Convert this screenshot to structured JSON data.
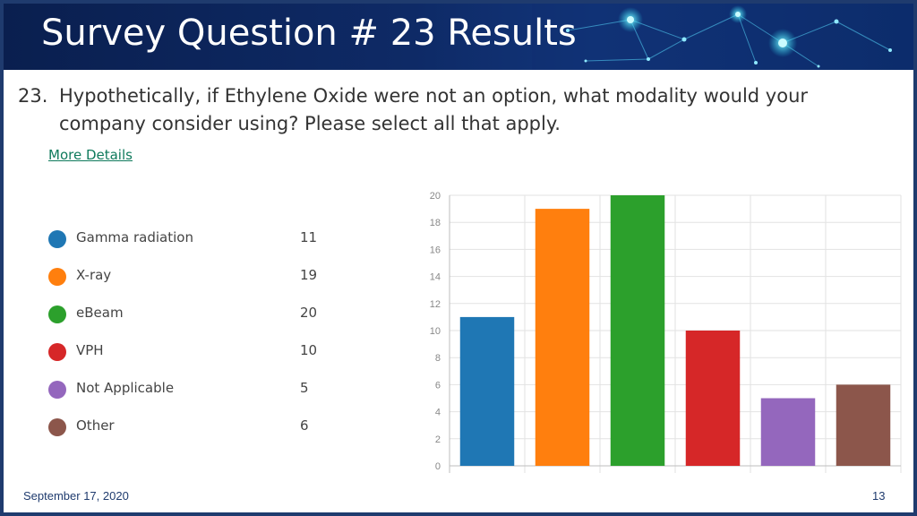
{
  "slide": {
    "title": "Survey Question # 23 Results",
    "question_number": "23.",
    "question_text": "Hypothetically, if Ethylene Oxide were not an option, what modality would your company consider using? Please select all that apply.",
    "more_details": "More Details",
    "date": "September 17, 2020",
    "page_number": "13"
  },
  "legend": [
    {
      "label": "Gamma radiation",
      "count": "11",
      "color": "#1f77b4"
    },
    {
      "label": "X-ray",
      "count": "19",
      "color": "#ff7f0e"
    },
    {
      "label": "eBeam",
      "count": "20",
      "color": "#2ca02c"
    },
    {
      "label": "VPH",
      "count": "10",
      "color": "#d62728"
    },
    {
      "label": "Not Applicable",
      "count": "5",
      "color": "#9467bd"
    },
    {
      "label": "Other",
      "count": "6",
      "color": "#8c564b"
    }
  ],
  "chart_data": {
    "type": "bar",
    "categories": [
      "Gamma radiation",
      "X-ray",
      "eBeam",
      "VPH",
      "Not Applicable",
      "Other"
    ],
    "values": [
      11,
      19,
      20,
      10,
      5,
      6
    ],
    "colors": [
      "#1f77b4",
      "#ff7f0e",
      "#2ca02c",
      "#d62728",
      "#9467bd",
      "#8c564b"
    ],
    "ylim": [
      0,
      20
    ],
    "yticks": [
      "0",
      "2",
      "4",
      "6",
      "8",
      "10",
      "12",
      "14",
      "16",
      "18",
      "20"
    ],
    "grid": true,
    "title": "",
    "xlabel": "",
    "ylabel": ""
  }
}
